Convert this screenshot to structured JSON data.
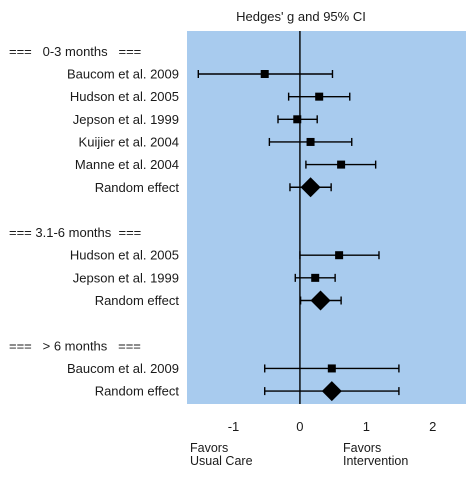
{
  "chart_data": {
    "type": "forest",
    "title": "Hedges' g and 95% CI",
    "xlim": [
      -1.7,
      2.5
    ],
    "xticks": [
      -1,
      0,
      1,
      2
    ],
    "tick_labels": [
      "-1",
      "0",
      "1",
      "2"
    ],
    "background_color": "#a8cbee",
    "marker_color": "#000000",
    "groups": [
      {
        "header": "===   0-3 months   ===",
        "studies": [
          {
            "label": "Baucom et al. 2009",
            "g": -0.53,
            "ci": [
              -1.53,
              0.49
            ]
          },
          {
            "label": "Hudson et al. 2005",
            "g": 0.29,
            "ci": [
              -0.17,
              0.75
            ]
          },
          {
            "label": "Jepson et al. 1999",
            "g": -0.04,
            "ci": [
              -0.33,
              0.26
            ]
          },
          {
            "label": "Kuijier et al. 2004",
            "g": 0.16,
            "ci": [
              -0.46,
              0.78
            ]
          },
          {
            "label": "Manne et al. 2004",
            "g": 0.62,
            "ci": [
              0.09,
              1.14
            ]
          }
        ],
        "random_effect": {
          "label": "Random effect",
          "g": 0.16,
          "ci": [
            -0.15,
            0.47
          ]
        }
      },
      {
        "header": "=== 3.1-6 months  ===",
        "studies": [
          {
            "label": "Hudson et al. 2005",
            "g": 0.59,
            "ci": [
              0.0,
              1.19
            ]
          },
          {
            "label": "Jepson et al. 1999",
            "g": 0.23,
            "ci": [
              -0.07,
              0.53
            ]
          }
        ],
        "random_effect": {
          "label": "Random effect",
          "g": 0.31,
          "ci": [
            0.01,
            0.62
          ]
        }
      },
      {
        "header": "===   > 6 months   ===",
        "studies": [
          {
            "label": "Baucom et al. 2009",
            "g": 0.48,
            "ci": [
              -0.53,
              1.49
            ]
          }
        ],
        "random_effect": {
          "label": "Random effect",
          "g": 0.48,
          "ci": [
            -0.53,
            1.49
          ]
        }
      }
    ],
    "footer_left": [
      "Favors",
      "Usual Care"
    ],
    "footer_right": [
      "Favors",
      "Intervention"
    ]
  }
}
